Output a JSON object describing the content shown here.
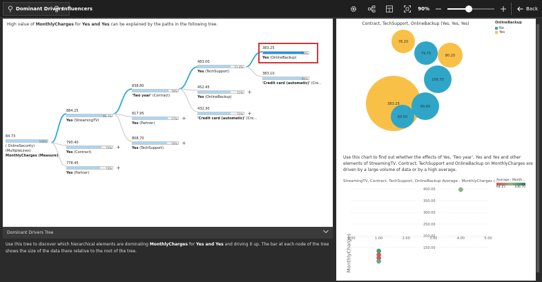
{
  "tabs": [
    {
      "label": "Dominant Drivers",
      "active": true
    },
    {
      "label": "Influencers",
      "active": false
    }
  ],
  "toolbar": {
    "zoom": "90%",
    "zoom_fraction": 0.45,
    "back_label": "Back"
  },
  "tree": {
    "headline_prefix": "High value of ",
    "headline_measure": "MonthlyCharges",
    "headline_mid": " for ",
    "headline_values": "Yes and Yes",
    "headline_suffix": " can be explained by the paths in the following tree.",
    "root": {
      "value": "84.73",
      "pct": "100%",
      "fill": 1.0,
      "lines": [
        "( OnlineSecurity)",
        "(MultipleLines)",
        "MonthlyCharges (Measure)"
      ]
    },
    "nodes": [
      {
        "value": "884.25",
        "pct": "84.3%",
        "fill": 0.843,
        "label": "Yes",
        "label_suffix": " (StreamingTV)"
      },
      {
        "value": "790.40",
        "pct": "75%",
        "fill": 0.75,
        "label": "Yes",
        "label_suffix": " (Contract)"
      },
      {
        "value": "778.45",
        "pct": "73%",
        "fill": 0.73,
        "label": "Yes",
        "label_suffix": " (Partner)"
      },
      {
        "value": "838.80",
        "pct": "79%",
        "fill": 0.79,
        "label": "'Two year'",
        "label_suffix": " (Contract)"
      },
      {
        "value": "817.95",
        "pct": "77%",
        "fill": 0.77,
        "label": "Yes",
        "label_suffix": " (Partner)"
      },
      {
        "value": "808.70",
        "pct": "76%",
        "fill": 0.76,
        "label": "Yes",
        "label_suffix": " (TechSupport)"
      },
      {
        "value": "483.00",
        "pct": "71.4%",
        "fill": 0.714,
        "label": "Yes",
        "label_suffix": " (TechSupport)"
      },
      {
        "value": "452.45",
        "pct": "71%",
        "fill": 0.71,
        "label": "Yes",
        "label_suffix": " (OnlineBackup)"
      },
      {
        "value": "432.30",
        "pct": "71%",
        "fill": 0.71,
        "label": "'Credit card (automatic)'",
        "label_suffix": " (Cre..."
      },
      {
        "value": "383.25",
        "pct": "90%",
        "fill": 0.9,
        "label": "Yes",
        "label_suffix": " (OnlineBackup)"
      },
      {
        "value": "383.10",
        "pct": "89%",
        "fill": 0.89,
        "label": "'Credit card (automatic)'",
        "label_suffix": " (Cre..."
      }
    ]
  },
  "drivers_strip": {
    "title": "Dominant Drivers Tree"
  },
  "description": {
    "p1": "Use this tree to discover which hierarchical elements are dominating ",
    "measure": "MonthlyCharges",
    "p2": " for ",
    "values": "Yes and Yes",
    "p3": " and driving it up. The bar at each node of the tree shows the size of the data there relative to the root of the tree."
  },
  "bubble_chart": {
    "title": "Contract, TechSupport, OnlineBackup (Yes, Yes, Yes)",
    "legend_title": "OnlineBackup",
    "legend": [
      {
        "label": "No",
        "color": "#2fa6c8"
      },
      {
        "label": "Yes",
        "color": "#f8c046"
      }
    ],
    "bubbles": [
      {
        "label": "383.25",
        "group": "Yes"
      },
      {
        "label": "76.20",
        "group": "Yes"
      },
      {
        "label": "79.75",
        "group": "No"
      },
      {
        "label": "80.20",
        "group": "Yes"
      },
      {
        "label": "106.70",
        "group": "No"
      },
      {
        "label": "89.65",
        "group": "No"
      },
      {
        "label": "69.50",
        "group": "No"
      }
    ]
  },
  "info_text": "Use this chart to find out whether the effects of Yes, 'Two year', Yes and Yes and other elements of StreamingTV, Contract, TechSupport and OnlineBackup on MonthlyCharges are driven by a large volume of data or by a high average.",
  "chart_data": {
    "type": "scatter",
    "title": "StreamingTV, Contract, TechSupport, OnlineBackup Average - MonthlyCharges (...",
    "ylabel": "MonthlyCharges",
    "x_ticks": [
      "0.00",
      "1.00",
      "2.00",
      "3.00",
      "4.00",
      "5.00"
    ],
    "y_ticks": [
      "400.00",
      "350.00",
      "300.00",
      "250.00",
      "200.00",
      "150.00"
    ],
    "xlim": [
      0,
      5
    ],
    "points": [
      {
        "x": 4.0,
        "y": 397,
        "color": "#8fb28f"
      },
      {
        "x": 1.0,
        "y": 45,
        "color": "#3aa37a"
      },
      {
        "x": 1.0,
        "y": 36,
        "color": "#d5545a"
      },
      {
        "x": 1.0,
        "y": 28,
        "color": "#d5545a"
      },
      {
        "x": 1.0,
        "y": 20,
        "color": "#5fae84"
      }
    ],
    "color_legend": {
      "title": "Average - Month...",
      "min": "64.15",
      "max": "106.70"
    }
  }
}
